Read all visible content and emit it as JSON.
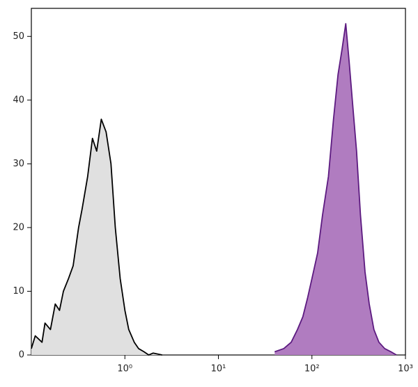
{
  "chart_data": {
    "type": "histogram-overlay",
    "log_x": true,
    "xlim": [
      0.1,
      1000
    ],
    "ylim": [
      0,
      54.4
    ],
    "xticks": [
      {
        "value": 1,
        "label": "10⁰"
      },
      {
        "value": 10,
        "label": "10¹"
      },
      {
        "value": 100,
        "label": "10²"
      },
      {
        "value": 1000,
        "label": "10³"
      }
    ],
    "yticks": [
      0,
      10,
      20,
      30,
      40,
      50
    ],
    "series": [
      {
        "color": "#000000",
        "fill": "#e0e0e0",
        "x": [
          0.1,
          0.11,
          0.13,
          0.14,
          0.16,
          0.18,
          0.2,
          0.22,
          0.25,
          0.28,
          0.32,
          0.35,
          0.4,
          0.45,
          0.5,
          0.56,
          0.63,
          0.71,
          0.79,
          0.89,
          1.0,
          1.1,
          1.26,
          1.4,
          1.6,
          1.8,
          2.0,
          2.5
        ],
        "values": [
          1,
          3,
          2,
          5,
          4,
          8,
          7,
          10,
          12,
          14,
          20,
          23,
          28,
          34,
          32,
          37,
          35,
          30,
          20,
          12,
          7,
          4,
          2,
          1,
          0.5,
          0,
          0.3,
          0
        ]
      },
      {
        "color": "#5c1a80",
        "fill": "#b07cc0",
        "x": [
          40,
          50,
          60,
          70,
          80,
          90,
          100,
          115,
          130,
          150,
          170,
          190,
          210,
          230,
          250,
          270,
          300,
          330,
          370,
          410,
          460,
          520,
          600,
          700,
          800
        ],
        "values": [
          0.5,
          1,
          2,
          4,
          6,
          9,
          12,
          16,
          22,
          28,
          37,
          44,
          48,
          52,
          46,
          40,
          32,
          22,
          13,
          8,
          4,
          2,
          1,
          0.5,
          0
        ]
      }
    ]
  }
}
